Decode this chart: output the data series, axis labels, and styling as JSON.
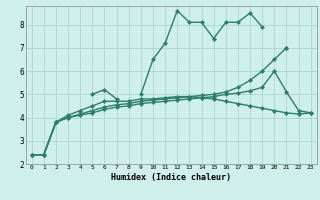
{
  "xlabel": "Humidex (Indice chaleur)",
  "background_color": "#cff0ea",
  "line_color": "#2e7d6e",
  "x_values": [
    0,
    1,
    2,
    3,
    4,
    5,
    6,
    7,
    8,
    9,
    10,
    11,
    12,
    13,
    14,
    15,
    16,
    17,
    18,
    19,
    20,
    21,
    22,
    23
  ],
  "series1": [
    2.4,
    2.4,
    3.8,
    null,
    null,
    5.0,
    5.2,
    4.8,
    null,
    5.0,
    6.5,
    7.2,
    8.6,
    8.1,
    8.1,
    7.4,
    8.1,
    8.1,
    8.5,
    7.9,
    null,
    7.0,
    null,
    null
  ],
  "series2": [
    2.4,
    2.4,
    3.8,
    4.1,
    4.3,
    4.5,
    4.7,
    4.7,
    4.7,
    4.8,
    4.8,
    4.85,
    4.9,
    4.9,
    4.85,
    4.8,
    4.7,
    4.6,
    4.5,
    4.4,
    4.3,
    4.2,
    4.15,
    4.2
  ],
  "series3": [
    2.4,
    2.4,
    3.8,
    4.0,
    4.15,
    4.3,
    4.45,
    4.55,
    4.6,
    4.7,
    4.75,
    4.8,
    4.85,
    4.9,
    4.95,
    5.0,
    5.1,
    5.3,
    5.6,
    6.0,
    6.5,
    7.0,
    null,
    null
  ],
  "series4": [
    2.4,
    2.4,
    3.8,
    4.0,
    4.1,
    4.2,
    4.35,
    4.45,
    4.5,
    4.6,
    4.65,
    4.7,
    4.75,
    4.8,
    4.85,
    4.9,
    5.0,
    5.05,
    5.15,
    5.3,
    6.0,
    5.1,
    4.3,
    4.2
  ],
  "ylim": [
    2.0,
    8.8
  ],
  "xlim": [
    -0.5,
    23.5
  ],
  "yticks": [
    2,
    3,
    4,
    5,
    6,
    7,
    8
  ],
  "xticks": [
    0,
    1,
    2,
    3,
    4,
    5,
    6,
    7,
    8,
    9,
    10,
    11,
    12,
    13,
    14,
    15,
    16,
    17,
    18,
    19,
    20,
    21,
    22,
    23
  ],
  "grid_color": "#a8d8d0",
  "marker": "D",
  "markersize": 2,
  "linewidth": 1.0
}
